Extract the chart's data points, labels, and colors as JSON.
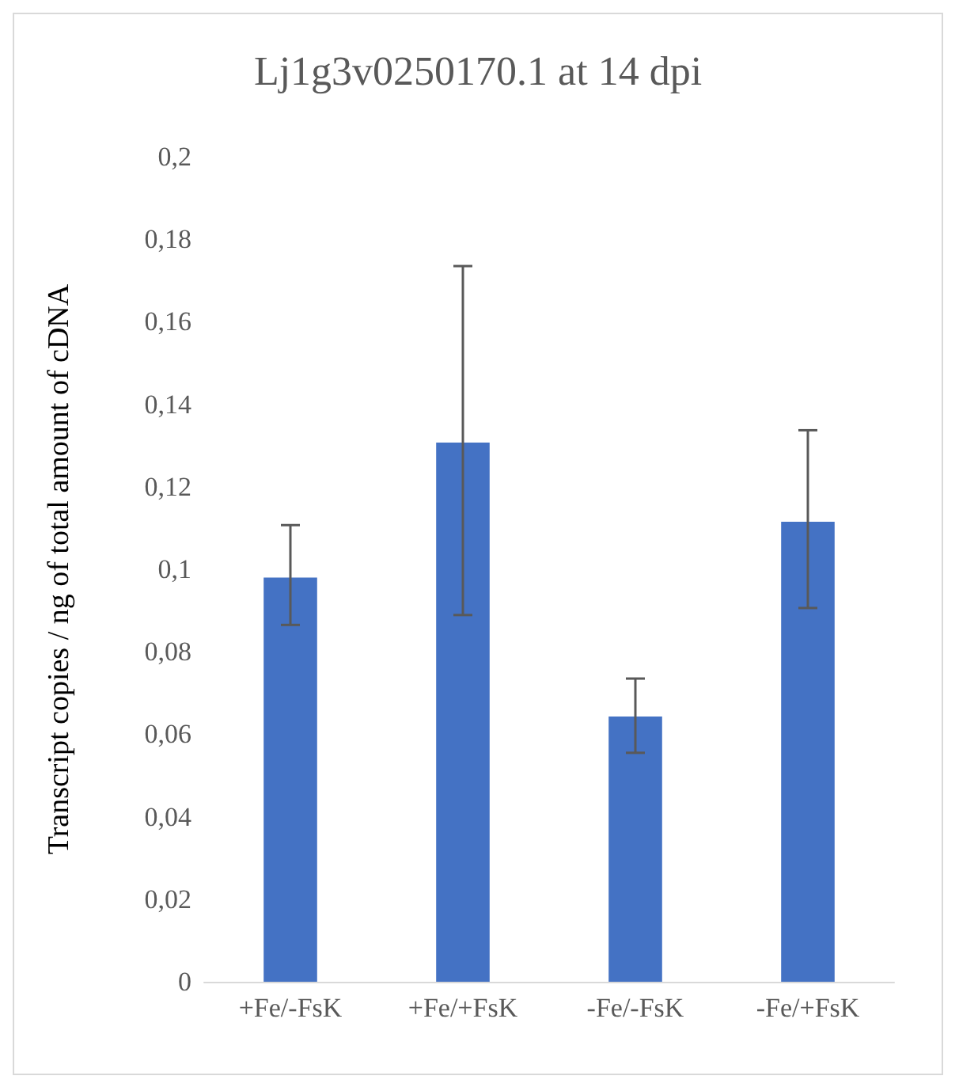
{
  "chart_data": {
    "type": "bar",
    "title": "Lj1g3v0250170.1 at 14 dpi",
    "ylabel": "Transcript copies / ng of total amount of cDNA",
    "categories": [
      "+Fe/-FsK",
      "+Fe/+FsK",
      "-Fe/-FsK",
      "-Fe/+FsK"
    ],
    "values": [
      0.098,
      0.1307,
      0.0643,
      0.1115
    ],
    "errors": [
      [
        0.0865,
        0.1107
      ],
      [
        0.0889,
        0.1735
      ],
      [
        0.0555,
        0.0735
      ],
      [
        0.0906,
        0.1337
      ]
    ],
    "color": "#4472c4",
    "ylim": [
      0,
      0.2
    ],
    "yticks": [
      {
        "value": 0,
        "label": "0"
      },
      {
        "value": 0.02,
        "label": "0,02"
      },
      {
        "value": 0.04,
        "label": "0,04"
      },
      {
        "value": 0.06,
        "label": "0,06"
      },
      {
        "value": 0.08,
        "label": "0,08"
      },
      {
        "value": 0.1,
        "label": "0,1"
      },
      {
        "value": 0.12,
        "label": "0,12"
      },
      {
        "value": 0.14,
        "label": "0,14"
      },
      {
        "value": 0.16,
        "label": "0,16"
      },
      {
        "value": 0.18,
        "label": "0,18"
      },
      {
        "value": 0.2,
        "label": "0,2"
      }
    ],
    "grid": false
  }
}
